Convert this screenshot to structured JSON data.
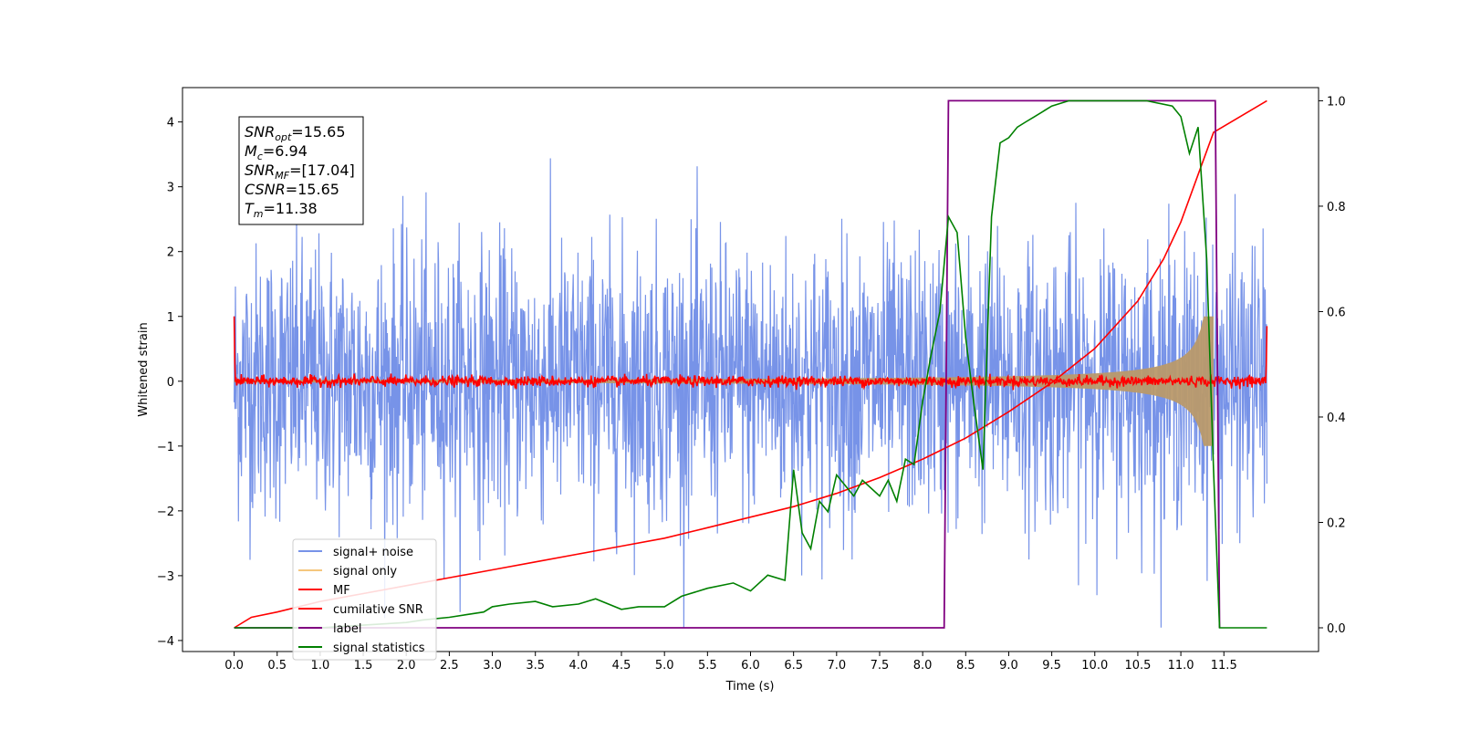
{
  "chart_data": {
    "type": "line",
    "xlabel": "Time (s)",
    "ylabel": "Whitened strain",
    "xlim": [
      -0.6,
      12.6
    ],
    "ylim": [
      -4.17,
      4.53
    ],
    "y2lim": [
      -0.045,
      1.025
    ],
    "x_ticks": [
      0.0,
      0.5,
      1.0,
      1.5,
      2.0,
      2.5,
      3.0,
      3.5,
      4.0,
      4.5,
      5.0,
      5.5,
      6.0,
      6.5,
      7.0,
      7.5,
      8.0,
      8.5,
      9.0,
      9.5,
      10.0,
      10.5,
      11.0,
      11.5
    ],
    "x_tick_labels": [
      "0.0",
      "0.5",
      "1.0",
      "1.5",
      "2.0",
      "2.5",
      "3.0",
      "3.5",
      "4.0",
      "4.5",
      "5.0",
      "5.5",
      "6.0",
      "6.5",
      "7.0",
      "7.5",
      "8.0",
      "8.5",
      "9.0",
      "9.5",
      "10.0",
      "10.5",
      "11.0",
      "11.5"
    ],
    "y_ticks": [
      -4,
      -3,
      -2,
      -1,
      0,
      1,
      2,
      3,
      4
    ],
    "y_tick_labels": [
      "−4",
      "−3",
      "−2",
      "−1",
      "0",
      "1",
      "2",
      "3",
      "4"
    ],
    "y2_ticks": [
      0.0,
      0.2,
      0.4,
      0.6,
      0.8,
      1.0
    ],
    "y2_tick_labels": [
      "0.0",
      "0.2",
      "0.4",
      "0.6",
      "0.8",
      "1.0"
    ],
    "grid": false,
    "legend_position": "bottom-left",
    "annotation_lines": [
      {
        "name": "SNR",
        "sub": "opt",
        "value": "=15.65"
      },
      {
        "name": "M",
        "sub": "c",
        "value": "=6.94"
      },
      {
        "name": "SNR",
        "sub": "MF",
        "value": "=[17.04]"
      },
      {
        "name": "CSNR",
        "sub": "",
        "value": "=15.65"
      },
      {
        "name": "T",
        "sub": "m",
        "value": "=11.38"
      }
    ],
    "series": [
      {
        "name": "signal+ noise",
        "color": "#7793e8",
        "axis": "left",
        "kind": "noise",
        "x_range": [
          0.0,
          12.0
        ],
        "range": [
          -3.8,
          3.8
        ]
      },
      {
        "name": "signal only",
        "color": "#f5c77e",
        "axis": "left",
        "kind": "chirp",
        "x_range": [
          0.0,
          11.38
        ],
        "peak_amplitude": 1.0
      },
      {
        "name": "MF",
        "color": "#ff0000",
        "axis": "left",
        "kind": "matched-filter",
        "x_range": [
          0.0,
          12.0
        ],
        "endpoints": [
          1.0,
          0.85
        ],
        "baseline": 0.0
      },
      {
        "name": "cumilative SNR",
        "color": "#ff0000",
        "axis": "right",
        "x": [
          0.0,
          0.2,
          0.5,
          1.0,
          1.5,
          2.0,
          2.5,
          3.0,
          3.5,
          4.0,
          4.5,
          5.0,
          5.5,
          6.0,
          6.5,
          7.0,
          7.5,
          8.0,
          8.5,
          9.0,
          9.5,
          10.0,
          10.5,
          10.8,
          11.0,
          11.2,
          11.38,
          12.0
        ],
        "y": [
          0.0,
          0.02,
          0.03,
          0.05,
          0.065,
          0.08,
          0.095,
          0.11,
          0.125,
          0.14,
          0.155,
          0.17,
          0.19,
          0.21,
          0.23,
          0.255,
          0.285,
          0.32,
          0.36,
          0.41,
          0.465,
          0.53,
          0.62,
          0.7,
          0.77,
          0.86,
          0.94,
          1.0
        ]
      },
      {
        "name": "label",
        "color": "#800080",
        "axis": "right",
        "x": [
          0.0,
          8.25,
          8.3,
          11.4,
          11.45
        ],
        "y": [
          0.0,
          0.0,
          1.0,
          1.0,
          0.0
        ]
      },
      {
        "name": "signal statistics",
        "color": "#008000",
        "axis": "right",
        "x": [
          0.0,
          0.5,
          1.0,
          1.5,
          2.0,
          2.2,
          2.5,
          2.7,
          2.9,
          3.0,
          3.2,
          3.5,
          3.7,
          4.0,
          4.2,
          4.5,
          4.7,
          5.0,
          5.2,
          5.5,
          5.8,
          6.0,
          6.2,
          6.4,
          6.5,
          6.6,
          6.7,
          6.8,
          6.9,
          7.0,
          7.2,
          7.3,
          7.5,
          7.6,
          7.7,
          7.8,
          7.9,
          8.0,
          8.1,
          8.2,
          8.3,
          8.4,
          8.5,
          8.6,
          8.7,
          8.8,
          8.9,
          9.0,
          9.1,
          9.2,
          9.3,
          9.5,
          9.7,
          10.0,
          10.3,
          10.6,
          10.9,
          11.0,
          11.1,
          11.2,
          11.3,
          11.38,
          11.45,
          11.5,
          12.0
        ],
        "y": [
          0.0,
          0.0,
          0.0,
          0.005,
          0.01,
          0.015,
          0.02,
          0.025,
          0.03,
          0.04,
          0.045,
          0.05,
          0.04,
          0.045,
          0.055,
          0.035,
          0.04,
          0.04,
          0.06,
          0.075,
          0.085,
          0.07,
          0.1,
          0.09,
          0.3,
          0.18,
          0.15,
          0.24,
          0.22,
          0.29,
          0.25,
          0.28,
          0.25,
          0.28,
          0.24,
          0.32,
          0.31,
          0.43,
          0.52,
          0.6,
          0.78,
          0.75,
          0.55,
          0.42,
          0.3,
          0.78,
          0.92,
          0.93,
          0.95,
          0.96,
          0.97,
          0.99,
          1.0,
          1.0,
          1.0,
          1.0,
          0.99,
          0.97,
          0.9,
          0.95,
          0.7,
          0.3,
          0.0,
          0.0,
          0.0
        ]
      }
    ]
  }
}
